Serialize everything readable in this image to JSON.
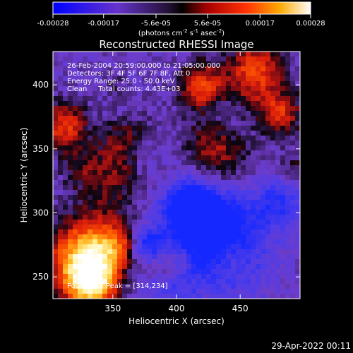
{
  "chart_data": {
    "type": "heatmap",
    "title": "Reconstructed RHESSI Image",
    "xlabel": "Heliocentric X (arcsec)",
    "ylabel": "Heliocentric Y (arcsec)",
    "xlim": [
      303,
      497
    ],
    "ylim": [
      233,
      426
    ],
    "x_ticks": [
      350,
      400,
      450
    ],
    "y_ticks": [
      250,
      300,
      350,
      400
    ],
    "colorbar": {
      "range": [
        -0.00028,
        0.00028
      ],
      "tick_labels": [
        "-0.00028",
        "-0.00017",
        "-5.6e-05",
        "5.6e-05",
        "0.00017",
        "0.00028"
      ],
      "tick_values": [
        -0.00028,
        -0.00017,
        -5.6e-05,
        5.6e-05,
        0.00017,
        0.00028
      ],
      "unit_label": "(photons cm",
      "unit_exp1": "-2",
      "unit_mid": " s",
      "unit_exp2": "-1",
      "unit_mid2": " asec",
      "unit_exp3": "-2",
      "unit_end": ")"
    },
    "info_lines": [
      "26-Feb-2004 20:59:00.000 to 21:05:00.000",
      "Detectors: 3F 4F 5F 6F 7F 8F, Att 0",
      "Energy Range: 25.0 - 50.0 keV",
      "Clean     Total counts: 4.43E+03"
    ],
    "peak_label": "Position of Peak = [314,234]",
    "peak": [
      314,
      234
    ],
    "grid": false
  },
  "footer": {
    "timestamp": "29-Apr-2022 00:11"
  },
  "colors": {
    "background": "#000000",
    "foreground": "#ffffff"
  }
}
